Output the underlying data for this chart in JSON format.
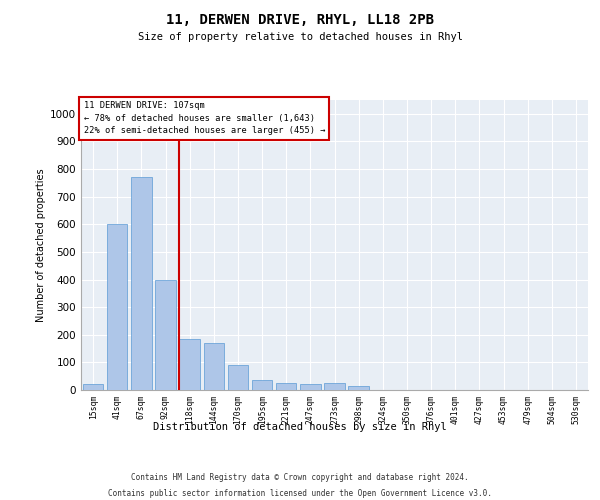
{
  "title": "11, DERWEN DRIVE, RHYL, LL18 2PB",
  "subtitle": "Size of property relative to detached houses in Rhyl",
  "xlabel": "Distribution of detached houses by size in Rhyl",
  "ylabel": "Number of detached properties",
  "footnote1": "Contains HM Land Registry data © Crown copyright and database right 2024.",
  "footnote2": "Contains public sector information licensed under the Open Government Licence v3.0.",
  "bin_labels": [
    "15sqm",
    "41sqm",
    "67sqm",
    "92sqm",
    "118sqm",
    "144sqm",
    "170sqm",
    "195sqm",
    "221sqm",
    "247sqm",
    "273sqm",
    "298sqm",
    "324sqm",
    "350sqm",
    "376sqm",
    "401sqm",
    "427sqm",
    "453sqm",
    "479sqm",
    "504sqm",
    "530sqm"
  ],
  "bar_values": [
    20,
    600,
    770,
    400,
    185,
    170,
    90,
    35,
    25,
    20,
    25,
    15,
    0,
    0,
    0,
    0,
    0,
    0,
    0,
    0,
    0
  ],
  "bar_color": "#aec6e8",
  "bar_edgecolor": "#5b9bd5",
  "property_label": "11 DERWEN DRIVE: 107sqm",
  "annotation_line1": "← 78% of detached houses are smaller (1,643)",
  "annotation_line2": "22% of semi-detached houses are larger (455) →",
  "vline_x": 3.54,
  "vline_color": "#cc0000",
  "annotation_box_color": "#cc0000",
  "ylim": [
    0,
    1050
  ],
  "yticks": [
    0,
    100,
    200,
    300,
    400,
    500,
    600,
    700,
    800,
    900,
    1000
  ],
  "plot_bg_color": "#e8eef5"
}
